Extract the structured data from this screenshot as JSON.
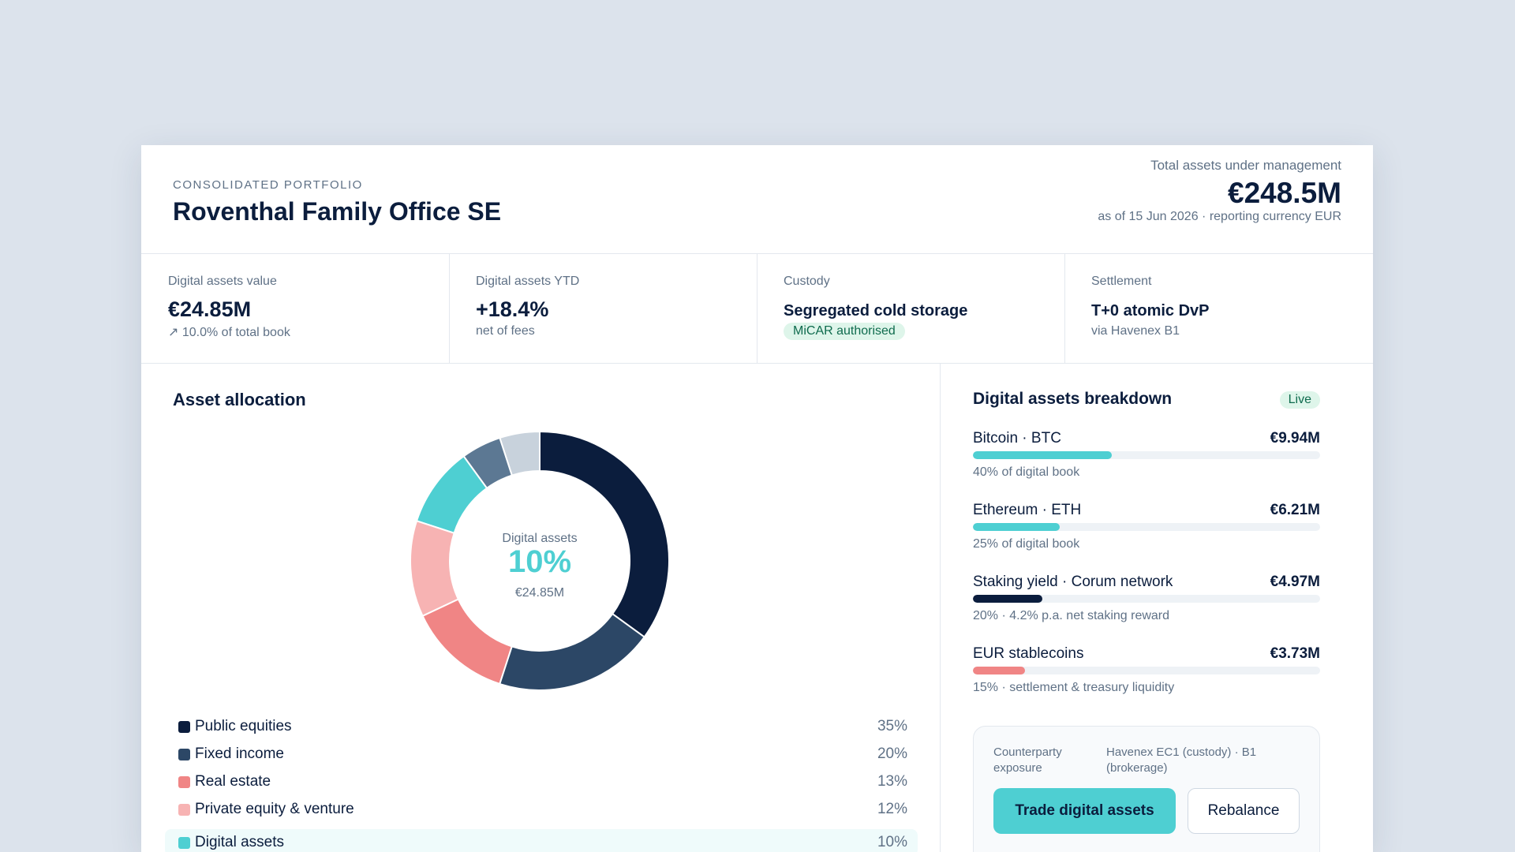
{
  "header": {
    "eyebrow": "CONSOLIDATED PORTFOLIO",
    "title": "Roventhal Family Office SE",
    "aum_label": "Total assets under management",
    "aum_value": "€248.5M",
    "aum_note": "as of 15 Jun 2026 · reporting currency EUR"
  },
  "kpis": [
    {
      "label": "Digital assets value",
      "value": "€24.85M",
      "note": "↗ 10.0% of total book"
    },
    {
      "label": "Digital assets YTD",
      "value": "+18.4%",
      "note": "net of fees"
    },
    {
      "label": "Custody",
      "value": "Segregated cold storage",
      "badge": "MiCAR authorised"
    },
    {
      "label": "Settlement",
      "value": "T+0 atomic DvP",
      "note": "via Havenex B1"
    }
  ],
  "allocation": {
    "title": "Asset allocation",
    "center_label": "Digital assets",
    "center_value": "10%",
    "center_note": "€24.85M"
  },
  "chart_data": {
    "type": "pie",
    "categories": [
      "Public equities",
      "Fixed income",
      "Real estate",
      "Private equity & venture",
      "Digital assets",
      null,
      null
    ],
    "values": [
      35,
      20,
      13,
      12,
      10,
      5,
      5
    ],
    "value_labels": [
      "35%",
      "20%",
      "13%",
      "12%",
      "10%",
      null,
      null
    ],
    "colors": [
      "#0b1d3d",
      "#2c4766",
      "#f08585",
      "#f7b3b3",
      "#4ecfd2",
      "#5c7893",
      "#c8d2dc"
    ]
  },
  "breakdown": {
    "title": "Digital assets breakdown",
    "badge": "Live",
    "items": [
      {
        "name": "Bitcoin · BTC",
        "value": "€9.94M",
        "share": 40,
        "note": "40% of digital book",
        "color": "#4ecfd2"
      },
      {
        "name": "Ethereum · ETH",
        "value": "€6.21M",
        "share": 25,
        "note": "25% of digital book",
        "color": "#4ecfd2"
      },
      {
        "name": "Staking yield · Corum network",
        "value": "€4.97M",
        "share": 20,
        "note": "20% · 4.2% p.a. net staking reward",
        "color": "#0b1d3d"
      },
      {
        "name": "EUR stablecoins",
        "value": "€3.73M",
        "share": 15,
        "note": "15% · settlement & treasury liquidity",
        "color": "#f08585"
      }
    ],
    "exposure_label": "Counterparty exposure",
    "exposure_value": "Havenex EC1 (custody) · B1 (brokerage)",
    "primary_button": "Trade digital assets",
    "secondary_button": "Rebalance"
  }
}
